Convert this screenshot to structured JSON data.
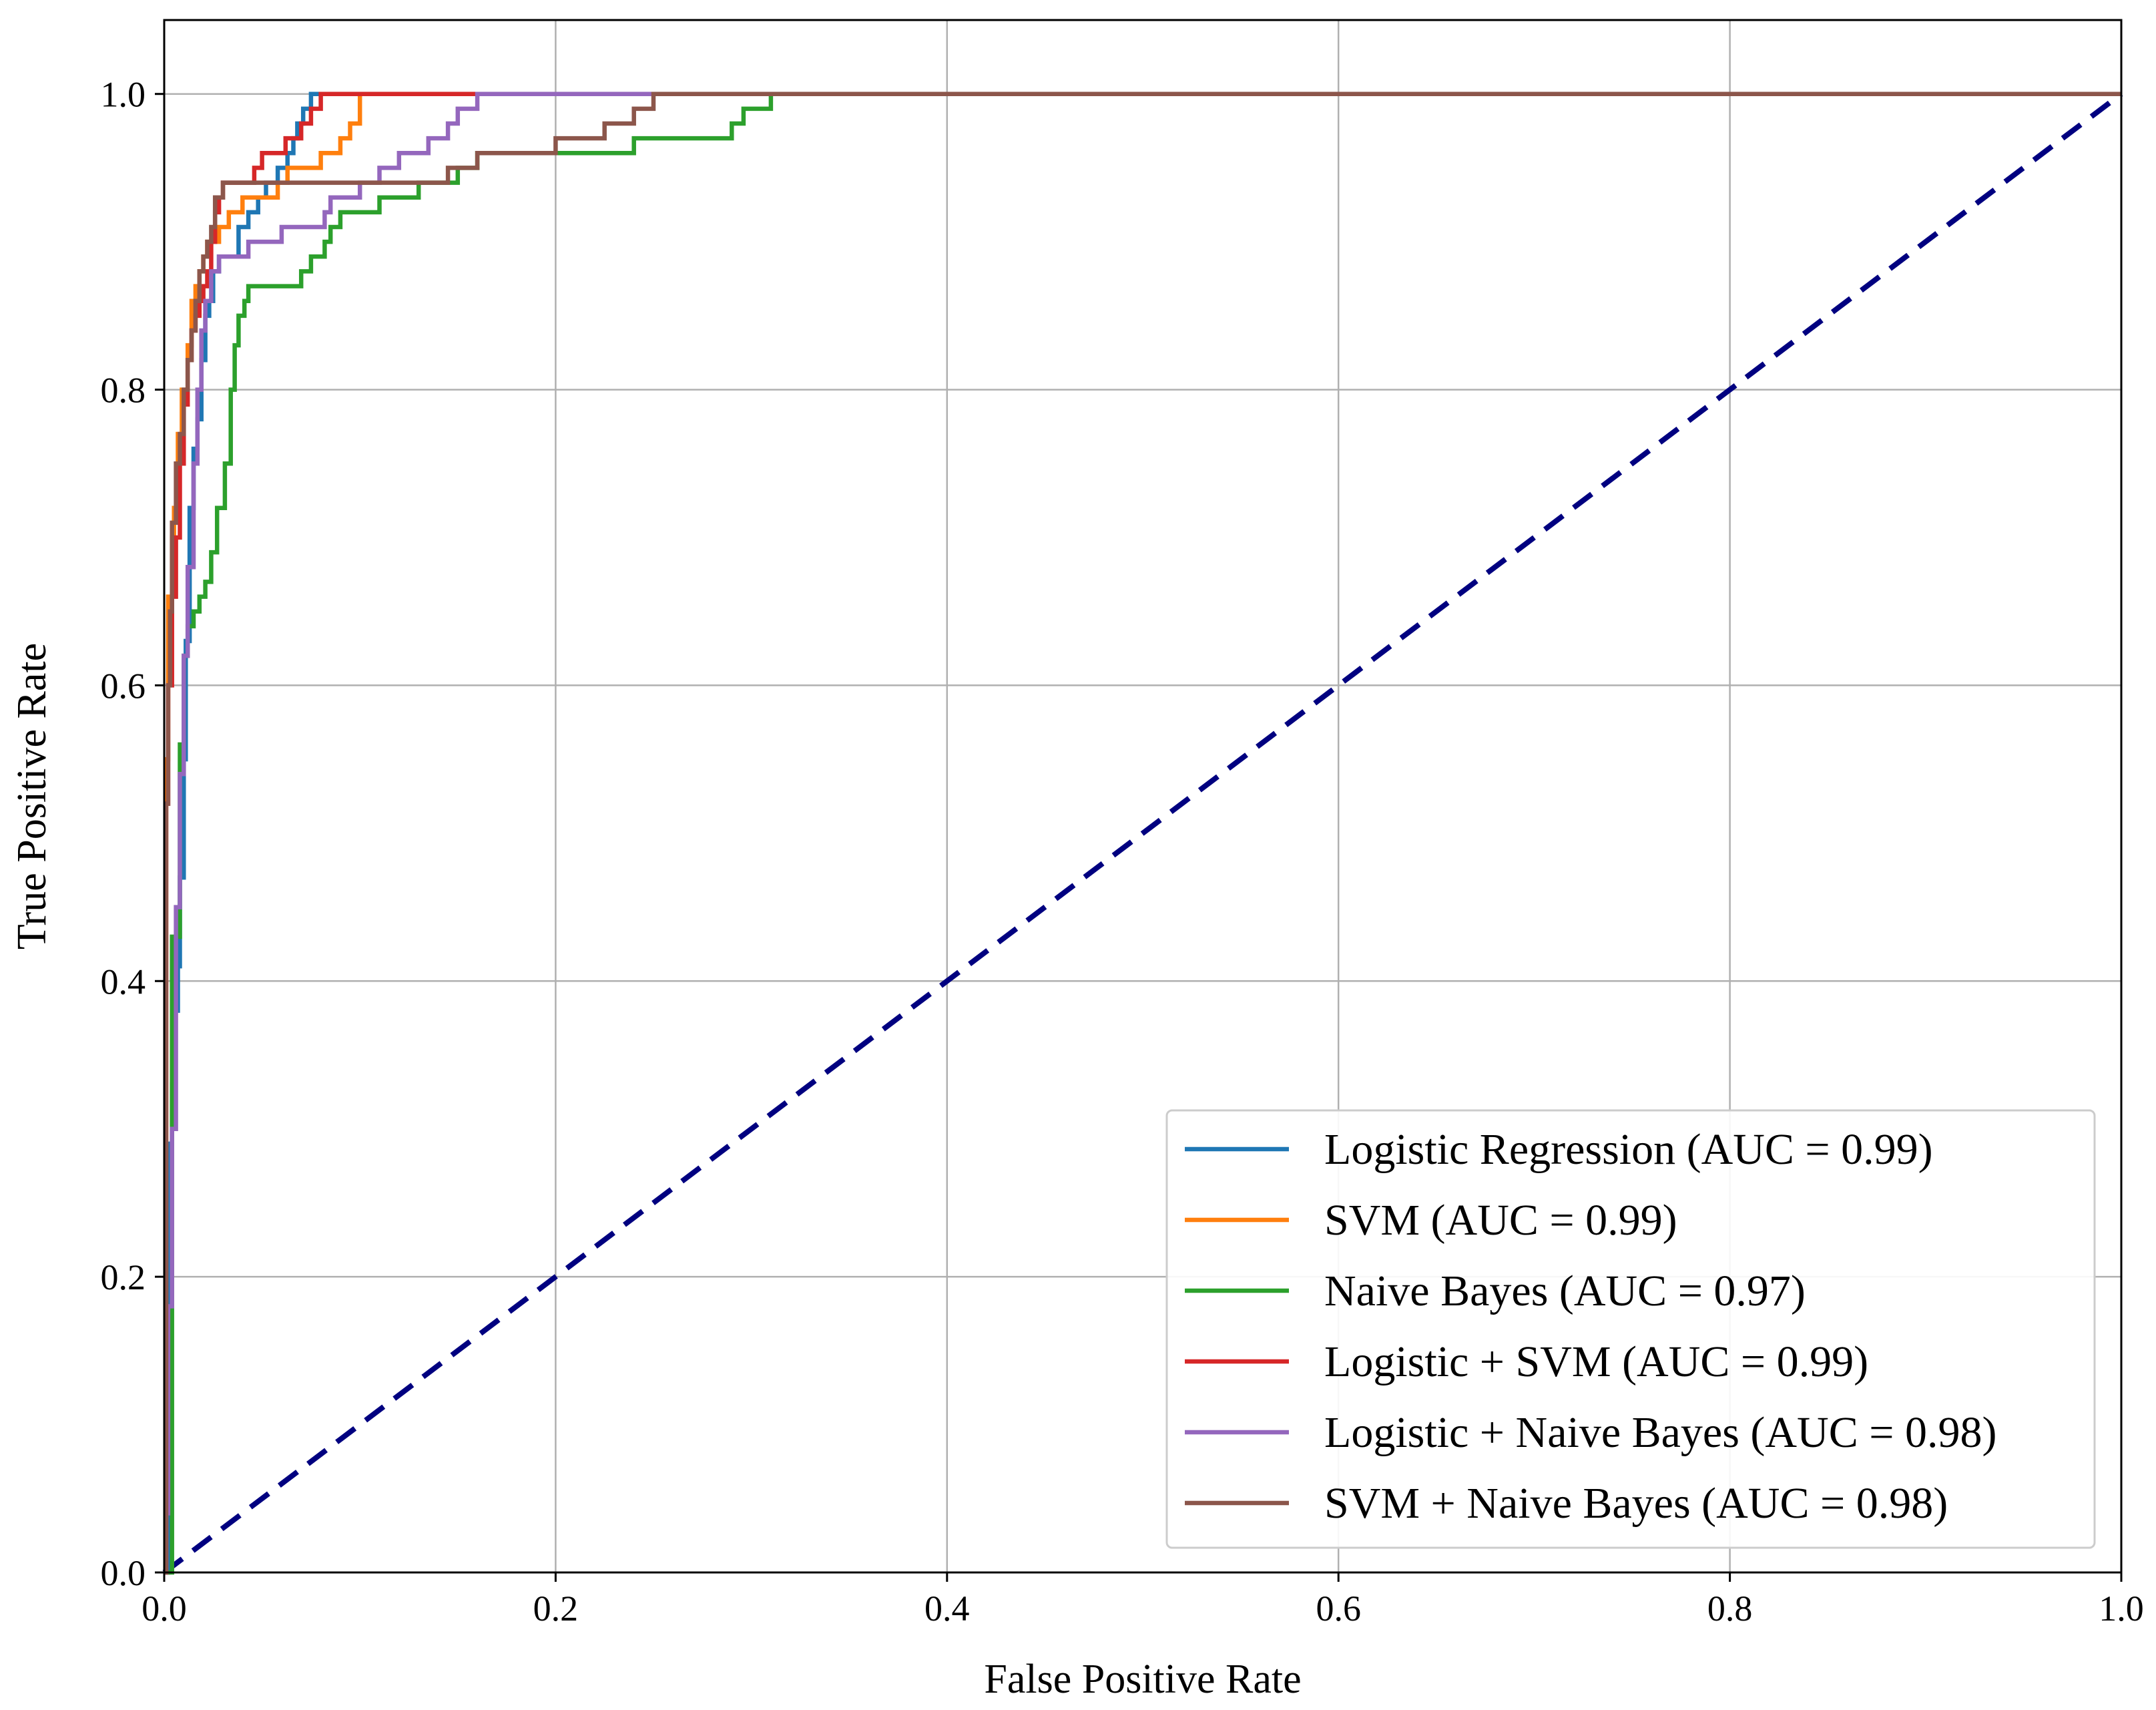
{
  "chart_data": {
    "type": "line",
    "title": "",
    "xlabel": "False Positive Rate",
    "ylabel": "True Positive Rate",
    "xlim": [
      0.0,
      1.0
    ],
    "ylim": [
      0.0,
      1.05
    ],
    "xticks": [
      0.0,
      0.2,
      0.4,
      0.6,
      0.8,
      1.0
    ],
    "yticks": [
      0.0,
      0.2,
      0.4,
      0.6,
      0.8,
      1.0
    ],
    "xtick_labels": [
      "0.0",
      "0.2",
      "0.4",
      "0.6",
      "0.8",
      "1.0"
    ],
    "ytick_labels": [
      "0.0",
      "0.2",
      "0.4",
      "0.6",
      "0.8",
      "1.0"
    ],
    "grid": true,
    "legend_position": "lower-right",
    "series": [
      {
        "name": "Logistic Regression (AUC = 0.99)",
        "color": "#1f77b4",
        "x": [
          0,
          0.002,
          0.004,
          0.005,
          0.007,
          0.008,
          0.01,
          0.011,
          0.013,
          0.015,
          0.017,
          0.019,
          0.021,
          0.023,
          0.025,
          0.028,
          0.031,
          0.036,
          0.038,
          0.043,
          0.048,
          0.052,
          0.058,
          0.063,
          0.066,
          0.068,
          0.071,
          0.075,
          0.08,
          0.1,
          1.0
        ],
        "y": [
          0,
          0.29,
          0.33,
          0.38,
          0.41,
          0.47,
          0.55,
          0.63,
          0.72,
          0.76,
          0.78,
          0.82,
          0.85,
          0.86,
          0.88,
          0.89,
          0.89,
          0.89,
          0.91,
          0.92,
          0.93,
          0.94,
          0.95,
          0.96,
          0.97,
          0.98,
          0.99,
          1.0,
          1.0,
          1.0,
          1.0
        ]
      },
      {
        "name": "SVM (AUC = 0.99)",
        "color": "#ff7f0e",
        "x": [
          0,
          0.001,
          0.002,
          0.004,
          0.005,
          0.007,
          0.009,
          0.012,
          0.014,
          0.016,
          0.018,
          0.02,
          0.022,
          0.025,
          0.028,
          0.033,
          0.04,
          0.05,
          0.058,
          0.063,
          0.08,
          0.09,
          0.095,
          0.1,
          0.12,
          1.0
        ],
        "y": [
          0,
          0.55,
          0.66,
          0.7,
          0.72,
          0.77,
          0.8,
          0.83,
          0.86,
          0.87,
          0.88,
          0.89,
          0.9,
          0.9,
          0.91,
          0.92,
          0.93,
          0.93,
          0.94,
          0.95,
          0.96,
          0.97,
          0.98,
          1.0,
          1.0,
          1.0
        ]
      },
      {
        "name": "Naive Bayes (AUC = 0.97)",
        "color": "#2ca02c",
        "x": [
          0,
          0.004,
          0.008,
          0.01,
          0.012,
          0.015,
          0.018,
          0.021,
          0.024,
          0.027,
          0.031,
          0.034,
          0.036,
          0.038,
          0.041,
          0.043,
          0.045,
          0.05,
          0.06,
          0.07,
          0.075,
          0.082,
          0.085,
          0.09,
          0.105,
          0.11,
          0.13,
          0.15,
          0.16,
          0.2,
          0.24,
          0.255,
          0.29,
          0.296,
          0.3,
          0.31,
          0.33,
          0.35,
          1.0
        ],
        "y": [
          0,
          0.43,
          0.56,
          0.62,
          0.64,
          0.65,
          0.66,
          0.67,
          0.69,
          0.72,
          0.75,
          0.8,
          0.83,
          0.85,
          0.86,
          0.87,
          0.87,
          0.87,
          0.87,
          0.88,
          0.89,
          0.9,
          0.91,
          0.92,
          0.92,
          0.93,
          0.94,
          0.95,
          0.96,
          0.96,
          0.97,
          0.97,
          0.98,
          0.99,
          0.99,
          1.0,
          1.0,
          1.0,
          1.0
        ]
      },
      {
        "name": "Logistic + SVM (AUC = 0.99)",
        "color": "#d62728",
        "x": [
          0,
          0.001,
          0.002,
          0.004,
          0.006,
          0.008,
          0.01,
          0.012,
          0.014,
          0.016,
          0.018,
          0.02,
          0.022,
          0.024,
          0.026,
          0.028,
          0.03,
          0.034,
          0.038,
          0.046,
          0.05,
          0.06,
          0.062,
          0.07,
          0.075,
          0.08,
          0.1,
          0.2,
          1.0
        ],
        "y": [
          0,
          0.52,
          0.6,
          0.66,
          0.7,
          0.75,
          0.79,
          0.82,
          0.84,
          0.85,
          0.86,
          0.87,
          0.88,
          0.9,
          0.92,
          0.93,
          0.94,
          0.94,
          0.94,
          0.95,
          0.96,
          0.96,
          0.97,
          0.98,
          0.99,
          1.0,
          1.0,
          1.0,
          1.0
        ]
      },
      {
        "name": "Logistic + Naive Bayes (AUC = 0.98)",
        "color": "#9467bd",
        "x": [
          0,
          0.001,
          0.002,
          0.004,
          0.006,
          0.008,
          0.01,
          0.012,
          0.015,
          0.017,
          0.019,
          0.021,
          0.024,
          0.028,
          0.035,
          0.043,
          0.055,
          0.06,
          0.075,
          0.082,
          0.085,
          0.1,
          0.11,
          0.12,
          0.125,
          0.135,
          0.145,
          0.15,
          0.155,
          0.16,
          0.18,
          0.25,
          0.3,
          1.0
        ],
        "y": [
          0,
          0.04,
          0.18,
          0.3,
          0.45,
          0.54,
          0.62,
          0.68,
          0.75,
          0.8,
          0.84,
          0.86,
          0.88,
          0.89,
          0.89,
          0.9,
          0.9,
          0.91,
          0.91,
          0.92,
          0.93,
          0.94,
          0.95,
          0.96,
          0.96,
          0.97,
          0.98,
          0.99,
          0.99,
          1.0,
          1.0,
          1.0,
          1.0,
          1.0
        ]
      },
      {
        "name": "SVM + Naive Bayes (AUC = 0.98)",
        "color": "#8c564b",
        "x": [
          0,
          0.001,
          0.002,
          0.003,
          0.004,
          0.006,
          0.008,
          0.01,
          0.012,
          0.014,
          0.016,
          0.018,
          0.02,
          0.022,
          0.024,
          0.026,
          0.03,
          0.035,
          0.04,
          0.06,
          0.12,
          0.145,
          0.16,
          0.19,
          0.2,
          0.22,
          0.225,
          0.235,
          0.24,
          0.245,
          0.25,
          0.26,
          0.3,
          1.0
        ],
        "y": [
          0,
          0.52,
          0.6,
          0.65,
          0.71,
          0.75,
          0.77,
          0.8,
          0.82,
          0.84,
          0.86,
          0.88,
          0.89,
          0.9,
          0.91,
          0.93,
          0.94,
          0.94,
          0.94,
          0.94,
          0.94,
          0.95,
          0.96,
          0.96,
          0.97,
          0.97,
          0.98,
          0.98,
          0.99,
          0.99,
          1.0,
          1.0,
          1.0,
          1.0
        ]
      }
    ],
    "reference_line": {
      "name": "chance",
      "color": "#000080",
      "style": "dashed",
      "x": [
        0,
        1
      ],
      "y": [
        0,
        1
      ]
    }
  }
}
